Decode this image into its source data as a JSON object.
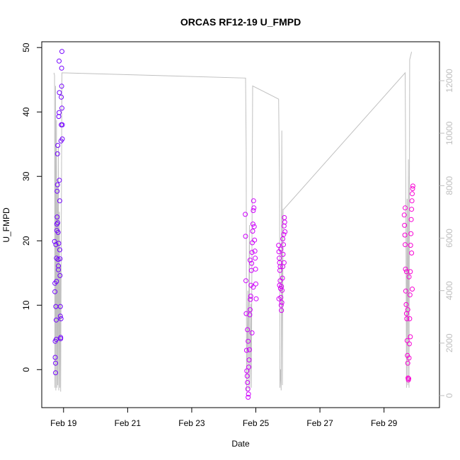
{
  "chart_data": {
    "type": "scatter",
    "title": "ORCAS RF12-19 U_FMPD",
    "xlabel": "Date",
    "ylabel": "U_FMPD",
    "x_unit": "days",
    "xlim": [
      18.32,
      30.73
    ],
    "ylim": [
      -5.9,
      50.9
    ],
    "x_ticks": [
      19,
      21,
      23,
      25,
      27,
      29
    ],
    "x_tick_labels": [
      "Feb 19",
      "Feb 21",
      "Feb 23",
      "Feb 25",
      "Feb 27",
      "Feb 29"
    ],
    "y_ticks": [
      0,
      10,
      20,
      30,
      40,
      50
    ],
    "y2_lim": [
      0,
      12100
    ],
    "y2_ticks": [
      0,
      2000,
      4000,
      6000,
      8000,
      10000,
      12000
    ],
    "series": [
      {
        "role": "U_FMPD points",
        "colors": [
          "#6a00ff",
          "#cc00ff",
          "#ff00cc"
        ],
        "points": [
          [
            18.72,
            19.9
          ],
          [
            18.73,
            13.4
          ],
          [
            18.73,
            12.1
          ],
          [
            18.74,
            4.4
          ],
          [
            18.74,
            1.9
          ],
          [
            18.75,
            1.0
          ],
          [
            18.75,
            -0.5
          ],
          [
            18.76,
            19.4
          ],
          [
            18.76,
            9.8
          ],
          [
            18.77,
            7.7
          ],
          [
            18.77,
            4.7
          ],
          [
            18.78,
            13.7
          ],
          [
            18.78,
            17.3
          ],
          [
            18.79,
            21.6
          ],
          [
            18.79,
            22.6
          ],
          [
            18.8,
            23.7
          ],
          [
            18.8,
            27.7
          ],
          [
            18.81,
            28.7
          ],
          [
            18.81,
            33.5
          ],
          [
            18.82,
            34.8
          ],
          [
            18.82,
            22.8
          ],
          [
            18.83,
            21.3
          ],
          [
            18.83,
            17.1
          ],
          [
            18.84,
            16.1
          ],
          [
            18.84,
            15.5
          ],
          [
            18.85,
            19.6
          ],
          [
            18.85,
            39.3
          ],
          [
            18.86,
            39.9
          ],
          [
            18.86,
            47.9
          ],
          [
            18.87,
            43.0
          ],
          [
            18.87,
            29.4
          ],
          [
            18.88,
            26.2
          ],
          [
            18.88,
            18.6
          ],
          [
            18.89,
            17.2
          ],
          [
            18.89,
            14.6
          ],
          [
            18.9,
            9.8
          ],
          [
            18.9,
            8.3
          ],
          [
            18.91,
            5.0
          ],
          [
            18.91,
            4.8
          ],
          [
            18.92,
            7.9
          ],
          [
            18.92,
            35.5
          ],
          [
            18.93,
            38.0
          ],
          [
            18.93,
            42.3
          ],
          [
            18.94,
            44.0
          ],
          [
            18.94,
            46.8
          ],
          [
            18.95,
            49.4
          ],
          [
            18.95,
            40.6
          ],
          [
            18.96,
            38.0
          ],
          [
            18.96,
            35.8
          ],
          [
            24.67,
            24.1
          ],
          [
            24.68,
            20.7
          ],
          [
            24.69,
            13.8
          ],
          [
            24.7,
            8.7
          ],
          [
            24.71,
            3.0
          ],
          [
            24.72,
            -0.2
          ],
          [
            24.73,
            -1.0
          ],
          [
            24.74,
            -2.0
          ],
          [
            24.75,
            -3.0
          ],
          [
            24.76,
            -4.3
          ],
          [
            24.77,
            -3.8
          ],
          [
            24.78,
            0.4
          ],
          [
            24.79,
            1.5
          ],
          [
            24.8,
            3.1
          ],
          [
            24.81,
            8.5
          ],
          [
            24.82,
            9.3
          ],
          [
            24.83,
            10.9
          ],
          [
            24.84,
            11.4
          ],
          [
            24.85,
            13.1
          ],
          [
            24.86,
            15.4
          ],
          [
            24.87,
            16.5
          ],
          [
            24.88,
            18.2
          ],
          [
            24.89,
            19.7
          ],
          [
            24.9,
            21.5
          ],
          [
            24.91,
            22.6
          ],
          [
            24.92,
            24.7
          ],
          [
            24.93,
            26.2
          ],
          [
            24.94,
            25.1
          ],
          [
            24.95,
            22.2
          ],
          [
            24.96,
            20.1
          ],
          [
            24.97,
            18.4
          ],
          [
            24.98,
            17.3
          ],
          [
            24.99,
            15.6
          ],
          [
            25.0,
            13.3
          ],
          [
            25.01,
            11.0
          ],
          [
            24.74,
            6.2
          ],
          [
            24.76,
            4.4
          ],
          [
            24.82,
            17.0
          ],
          [
            24.88,
            5.7
          ],
          [
            24.92,
            12.8
          ],
          [
            25.71,
            19.3
          ],
          [
            25.72,
            18.3
          ],
          [
            25.73,
            17.3
          ],
          [
            25.74,
            16.6
          ],
          [
            25.75,
            15.4
          ],
          [
            25.76,
            13.8
          ],
          [
            25.77,
            12.6
          ],
          [
            25.78,
            11.2
          ],
          [
            25.79,
            10.0
          ],
          [
            25.8,
            9.2
          ],
          [
            25.81,
            10.4
          ],
          [
            25.82,
            12.3
          ],
          [
            25.83,
            14.2
          ],
          [
            25.84,
            16.0
          ],
          [
            25.85,
            17.9
          ],
          [
            25.86,
            19.4
          ],
          [
            25.87,
            21.0
          ],
          [
            25.88,
            22.3
          ],
          [
            25.89,
            23.6
          ],
          [
            25.9,
            22.9
          ],
          [
            25.91,
            21.4
          ],
          [
            25.72,
            11.0
          ],
          [
            25.74,
            13.1
          ],
          [
            25.76,
            16.0
          ],
          [
            25.78,
            18.7
          ],
          [
            25.8,
            12.9
          ],
          [
            25.84,
            20.3
          ],
          [
            25.88,
            16.6
          ],
          [
            29.63,
            24.0
          ],
          [
            29.64,
            22.4
          ],
          [
            29.65,
            20.9
          ],
          [
            29.66,
            19.4
          ],
          [
            29.67,
            15.6
          ],
          [
            29.68,
            12.2
          ],
          [
            29.69,
            10.1
          ],
          [
            29.7,
            8.7
          ],
          [
            29.71,
            7.9
          ],
          [
            29.72,
            4.5
          ],
          [
            29.73,
            2.2
          ],
          [
            29.74,
            1.0
          ],
          [
            29.75,
            -1.3
          ],
          [
            29.76,
            -1.6
          ],
          [
            29.77,
            -1.4
          ],
          [
            29.78,
            1.8
          ],
          [
            29.79,
            4.0
          ],
          [
            29.8,
            7.9
          ],
          [
            29.81,
            11.6
          ],
          [
            29.82,
            15.2
          ],
          [
            29.83,
            19.3
          ],
          [
            29.84,
            21.1
          ],
          [
            29.85,
            23.3
          ],
          [
            29.86,
            24.9
          ],
          [
            29.87,
            26.2
          ],
          [
            29.88,
            27.3
          ],
          [
            29.89,
            28.1
          ],
          [
            29.9,
            28.5
          ],
          [
            29.66,
            25.1
          ],
          [
            29.7,
            15.2
          ],
          [
            29.74,
            9.3
          ],
          [
            29.78,
            14.4
          ],
          [
            29.82,
            5.1
          ],
          [
            29.86,
            18.1
          ],
          [
            29.88,
            12.5
          ]
        ]
      },
      {
        "role": "secondary axis trace (grey line)",
        "color": "#c0c0c0",
        "points": [
          [
            18.7,
            12300
          ],
          [
            18.72,
            12200
          ],
          [
            18.73,
            300
          ],
          [
            18.75,
            11800
          ],
          [
            18.76,
            200
          ],
          [
            18.78,
            10500
          ],
          [
            18.79,
            300
          ],
          [
            18.81,
            8000
          ],
          [
            18.82,
            400
          ],
          [
            18.84,
            9500
          ],
          [
            18.85,
            200
          ],
          [
            18.87,
            7000
          ],
          [
            18.88,
            300
          ],
          [
            18.9,
            5000
          ],
          [
            18.91,
            150
          ],
          [
            18.95,
            12300
          ],
          [
            24.68,
            12100
          ],
          [
            24.7,
            9300
          ],
          [
            24.71,
            150
          ],
          [
            24.75,
            4000
          ],
          [
            24.76,
            250
          ],
          [
            24.8,
            6500
          ],
          [
            24.81,
            200
          ],
          [
            24.85,
            3500
          ],
          [
            24.86,
            300
          ],
          [
            24.9,
            11800
          ],
          [
            25.71,
            11300
          ],
          [
            25.74,
            8000
          ],
          [
            25.75,
            300
          ],
          [
            25.77,
            1000
          ],
          [
            25.79,
            200
          ],
          [
            25.81,
            10100
          ],
          [
            25.83,
            400
          ],
          [
            25.85,
            7100
          ],
          [
            25.87,
            7100
          ],
          [
            29.66,
            12300
          ],
          [
            29.68,
            8200
          ],
          [
            29.7,
            300
          ],
          [
            29.72,
            7500
          ],
          [
            29.74,
            400
          ],
          [
            29.76,
            9000
          ],
          [
            29.78,
            300
          ],
          [
            29.8,
            12800
          ],
          [
            29.86,
            13100
          ]
        ]
      }
    ]
  }
}
